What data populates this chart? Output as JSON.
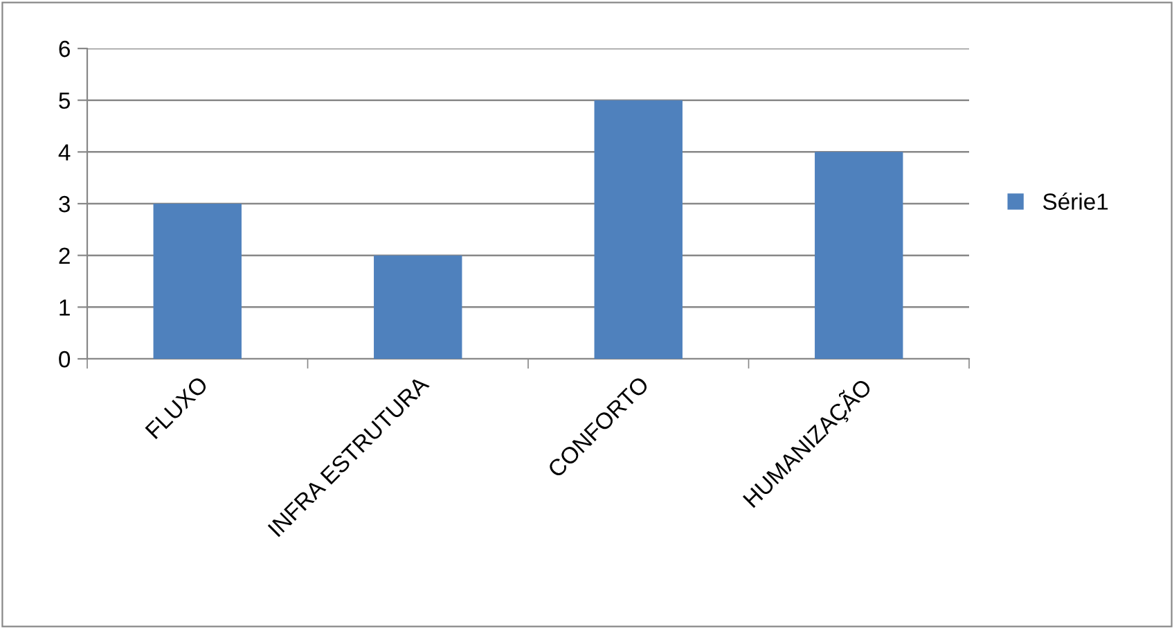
{
  "chart_data": {
    "type": "bar",
    "categories": [
      "FLUXO",
      "INFRA ESTRUTURA",
      "CONFORTO",
      "HUMANIZAÇÃO"
    ],
    "series": [
      {
        "name": "Série1",
        "color": "#4f81bd",
        "values": [
          3,
          2,
          5,
          4
        ]
      }
    ],
    "ylim": [
      0,
      6
    ],
    "yticks": [
      0,
      1,
      2,
      3,
      4,
      5,
      6
    ],
    "grid": "y",
    "legend": "right"
  }
}
